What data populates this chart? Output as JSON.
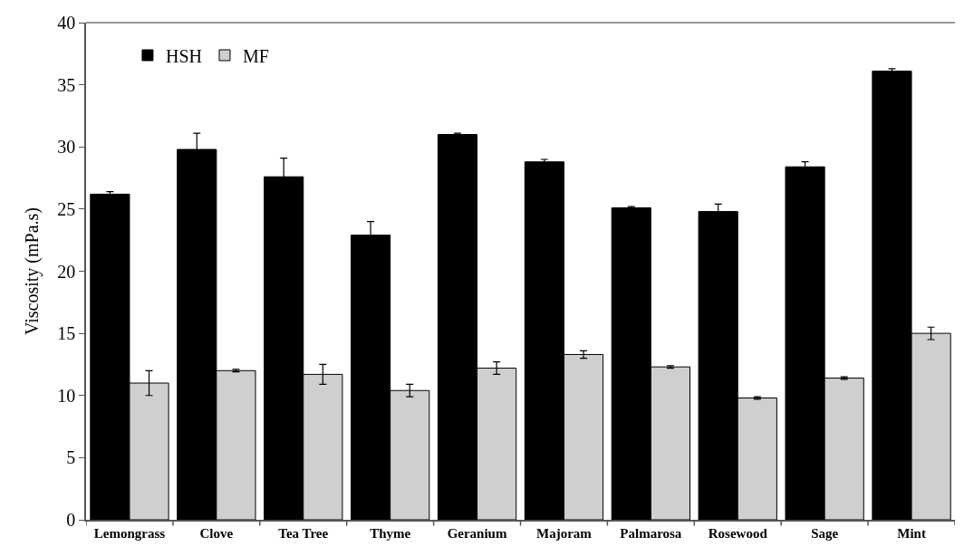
{
  "chart_data": {
    "type": "bar",
    "ylabel": "Viscosity (mPa.s)",
    "categories": [
      "Lemongrass",
      "Clove",
      "Tea Tree",
      "Thyme",
      "Geranium",
      "Majoram",
      "Palmarosa",
      "Rosewood",
      "Sage",
      "Mint"
    ],
    "series": [
      {
        "name": "HSH",
        "color": "#000000",
        "values": [
          26.2,
          29.8,
          27.6,
          22.9,
          31.0,
          28.8,
          25.1,
          24.8,
          28.4,
          36.1
        ],
        "errors": [
          0.2,
          1.3,
          1.5,
          1.1,
          0.1,
          0.2,
          0.1,
          0.6,
          0.4,
          0.2
        ]
      },
      {
        "name": "MF",
        "color": "#cfcfcf",
        "values": [
          11.0,
          12.0,
          11.7,
          10.4,
          12.2,
          13.3,
          12.3,
          9.8,
          11.4,
          15.0
        ],
        "errors": [
          1.0,
          0.1,
          0.8,
          0.5,
          0.5,
          0.3,
          0.1,
          0.1,
          0.1,
          0.5
        ]
      }
    ],
    "ylim": [
      0,
      40
    ],
    "yticks": [
      0,
      5,
      10,
      15,
      20,
      25,
      30,
      35,
      40
    ],
    "legend": "top left"
  }
}
